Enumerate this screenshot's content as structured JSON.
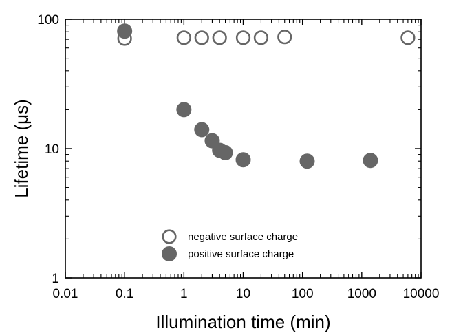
{
  "chart_data": {
    "type": "scatter",
    "xlabel": "Illumination time (min)",
    "ylabel": "Lifetime (μs)",
    "xscale": "log",
    "yscale": "log",
    "xlim": [
      0.01,
      10000
    ],
    "ylim": [
      1,
      100
    ],
    "x_ticks": [
      0.01,
      0.1,
      1,
      10,
      100,
      1000,
      10000
    ],
    "x_tick_labels": [
      "0.01",
      "0.1",
      "1",
      "10",
      "100",
      "1000",
      "10000"
    ],
    "y_ticks": [
      1,
      10,
      100
    ],
    "y_tick_labels": [
      "1",
      "10",
      "100"
    ],
    "grid": false,
    "legend_position": "bottom-center",
    "series": [
      {
        "name": "negative surface charge",
        "marker": "open-circle",
        "color": "#666666",
        "points": [
          {
            "x": 0.1,
            "y": 71
          },
          {
            "x": 1,
            "y": 72
          },
          {
            "x": 2,
            "y": 72
          },
          {
            "x": 4,
            "y": 72
          },
          {
            "x": 10,
            "y": 72
          },
          {
            "x": 20,
            "y": 72
          },
          {
            "x": 50,
            "y": 73
          },
          {
            "x": 6000,
            "y": 72
          }
        ]
      },
      {
        "name": "positive surface charge",
        "marker": "filled-circle",
        "color": "#666666",
        "points": [
          {
            "x": 0.1,
            "y": 81
          },
          {
            "x": 1,
            "y": 20
          },
          {
            "x": 2,
            "y": 14
          },
          {
            "x": 3,
            "y": 11.5
          },
          {
            "x": 4,
            "y": 9.7
          },
          {
            "x": 5,
            "y": 9.3
          },
          {
            "x": 10,
            "y": 8.2
          },
          {
            "x": 120,
            "y": 8.0
          },
          {
            "x": 1400,
            "y": 8.1
          }
        ]
      }
    ]
  }
}
